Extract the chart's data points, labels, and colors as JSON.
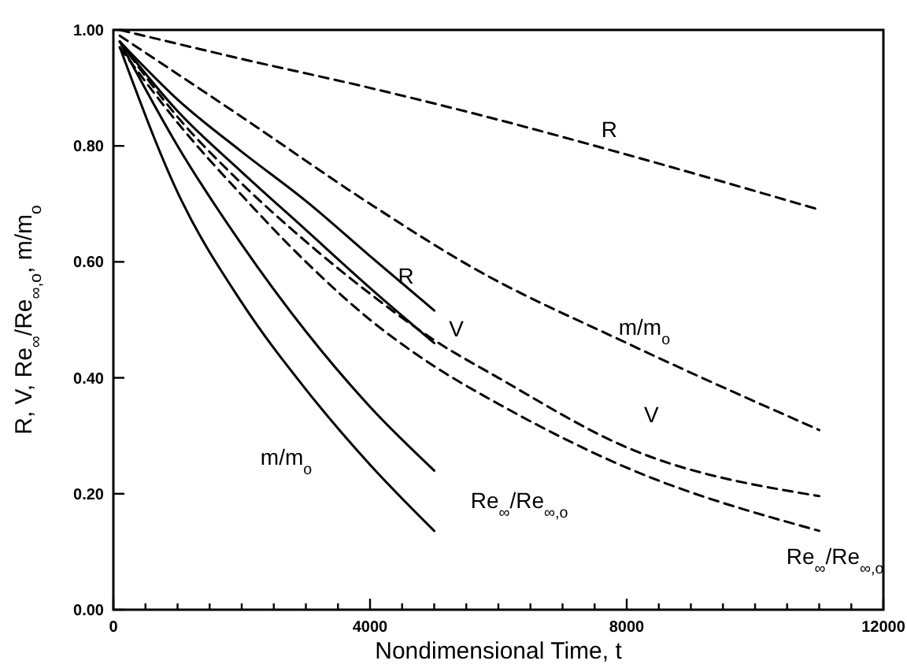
{
  "chart_data": {
    "type": "line",
    "xlabel": "Nondimensional Time, t",
    "ylabel": "R, V, Re$_{∞}$/Re$_{∞,o}$, m/m$_{o}$",
    "xlim": [
      0,
      12000
    ],
    "ylim": [
      0,
      1
    ],
    "xticks": [
      0,
      {
        "value": 500,
        "label": null
      },
      {
        "value": 1000,
        "label": null
      },
      {
        "value": 1500,
        "label": null
      },
      {
        "value": 2000,
        "label": null
      },
      {
        "value": 2500,
        "label": null
      },
      {
        "value": 3000,
        "label": null
      },
      {
        "value": 3500,
        "label": null
      },
      4000,
      {
        "value": 4500,
        "label": null
      },
      {
        "value": 5000,
        "label": null
      },
      {
        "value": 5500,
        "label": null
      },
      {
        "value": 6000,
        "label": null
      },
      {
        "value": 6500,
        "label": null
      },
      {
        "value": 7000,
        "label": null
      },
      {
        "value": 7500,
        "label": null
      },
      8000,
      {
        "value": 8500,
        "label": null
      },
      {
        "value": 9000,
        "label": null
      },
      {
        "value": 9500,
        "label": null
      },
      {
        "value": 10000,
        "label": null
      },
      {
        "value": 10500,
        "label": null
      },
      {
        "value": 11000,
        "label": null
      },
      {
        "value": 11500,
        "label": null
      },
      12000
    ],
    "yticks": [
      {
        "value": 0,
        "label": "0.00"
      },
      {
        "value": 0.2,
        "label": "0.20"
      },
      {
        "value": 0.4,
        "label": "0.40"
      },
      {
        "value": 0.6,
        "label": "0.60"
      },
      {
        "value": 0.8,
        "label": "0.80"
      },
      {
        "value": 1,
        "label": "1.00"
      }
    ],
    "grid": false,
    "legend": false,
    "marker": "none",
    "series": [
      {
        "name": "R",
        "color": "#000000",
        "line_style": "dashed",
        "x": [
          100,
          2000,
          4000,
          6000,
          8000,
          11000
        ],
        "values": [
          1.0,
          0.95,
          0.9,
          0.845,
          0.785,
          0.69
        ]
      },
      {
        "name": "m/m$_{o}$",
        "color": "#000000",
        "line_style": "dashed",
        "x": [
          100,
          2000,
          4000,
          5600,
          8000,
          11000
        ],
        "values": [
          0.99,
          0.85,
          0.7,
          0.59,
          0.46,
          0.31
        ]
      },
      {
        "name": "V",
        "color": "#000000",
        "line_style": "dashed",
        "x": [
          100,
          1000,
          2000,
          3000,
          4000,
          5000,
          6000,
          8000,
          11000
        ],
        "values": [
          0.98,
          0.85,
          0.735,
          0.635,
          0.545,
          0.465,
          0.4,
          0.28,
          0.196
        ]
      },
      {
        "name": "Re$_{∞}$/Re$_{∞,o}$",
        "color": "#000000",
        "line_style": "dashed",
        "x": [
          100,
          1000,
          2000,
          3000,
          4000,
          5000,
          6000,
          8000,
          11000
        ],
        "values": [
          0.97,
          0.84,
          0.715,
          0.6,
          0.5,
          0.42,
          0.355,
          0.245,
          0.136
        ]
      },
      {
        "name": "R",
        "color": "#000000",
        "line_style": "solid",
        "x": [
          100,
          1000,
          2000,
          3000,
          4000,
          5000
        ],
        "values": [
          0.98,
          0.88,
          0.79,
          0.705,
          0.61,
          0.516
        ]
      },
      {
        "name": "V",
        "color": "#000000",
        "line_style": "solid",
        "x": [
          100,
          1000,
          2000,
          3000,
          4000,
          5000
        ],
        "values": [
          0.98,
          0.86,
          0.755,
          0.655,
          0.555,
          0.46
        ]
      },
      {
        "name": "Re$_{∞}$/Re$_{∞,o}$",
        "color": "#000000",
        "line_style": "solid",
        "x": [
          100,
          1000,
          2000,
          3000,
          4000,
          5000
        ],
        "values": [
          0.98,
          0.8,
          0.63,
          0.48,
          0.35,
          0.24
        ]
      },
      {
        "name": "m/m$_{o}$",
        "color": "#000000",
        "line_style": "solid",
        "x": [
          100,
          1000,
          2000,
          3000,
          4000,
          5000
        ],
        "values": [
          0.97,
          0.72,
          0.53,
          0.38,
          0.25,
          0.136
        ]
      }
    ]
  }
}
